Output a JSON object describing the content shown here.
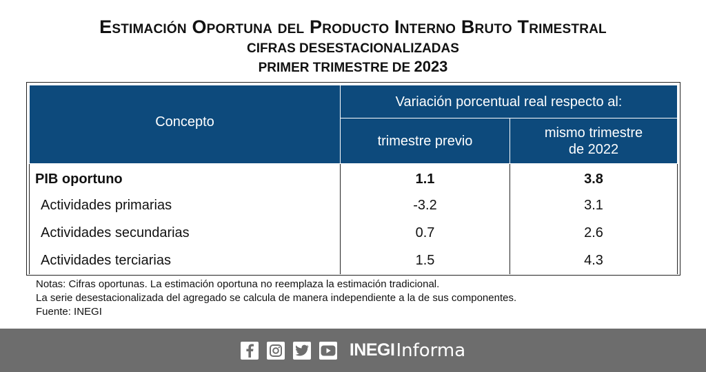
{
  "title": {
    "main": "Estimación Oportuna del Producto Interno Bruto Trimestral",
    "subtitle": "CIFRAS DESESTACIONALIZADAS",
    "period_text": "PRIMER TRIMESTRE DE",
    "period_year": "2023"
  },
  "table": {
    "header_concept": "Concepto",
    "header_group": "Variación porcentual real respecto al:",
    "header_col_a": "trimestre previo",
    "header_col_b_line1": "mismo trimestre",
    "header_col_b_line2": "de 2022",
    "rows": [
      {
        "label": "PIB oportuno",
        "a": "1.1",
        "b": "3.8"
      },
      {
        "label": "Actividades primarias",
        "a": "-3.2",
        "b": "3.1"
      },
      {
        "label": "Actividades secundarias",
        "a": "0.7",
        "b": "2.6"
      },
      {
        "label": "Actividades terciarias",
        "a": "1.5",
        "b": "4.3"
      }
    ]
  },
  "notes": {
    "line1": "Notas: Cifras oportunas. La estimación oportuna no reemplaza la estimación tradicional.",
    "line2": "La serie desestacionalizada del agregado se calcula de manera independiente a la de sus componentes.",
    "line3": "Fuente: INEGI"
  },
  "footer": {
    "social_icons": [
      "facebook-icon",
      "instagram-icon",
      "twitter-icon",
      "youtube-icon"
    ],
    "brand_bold": "INEGI",
    "brand_light": "Informa",
    "background_color": "#6d6d6d"
  },
  "colors": {
    "header_blue": "#0d4a7c"
  }
}
